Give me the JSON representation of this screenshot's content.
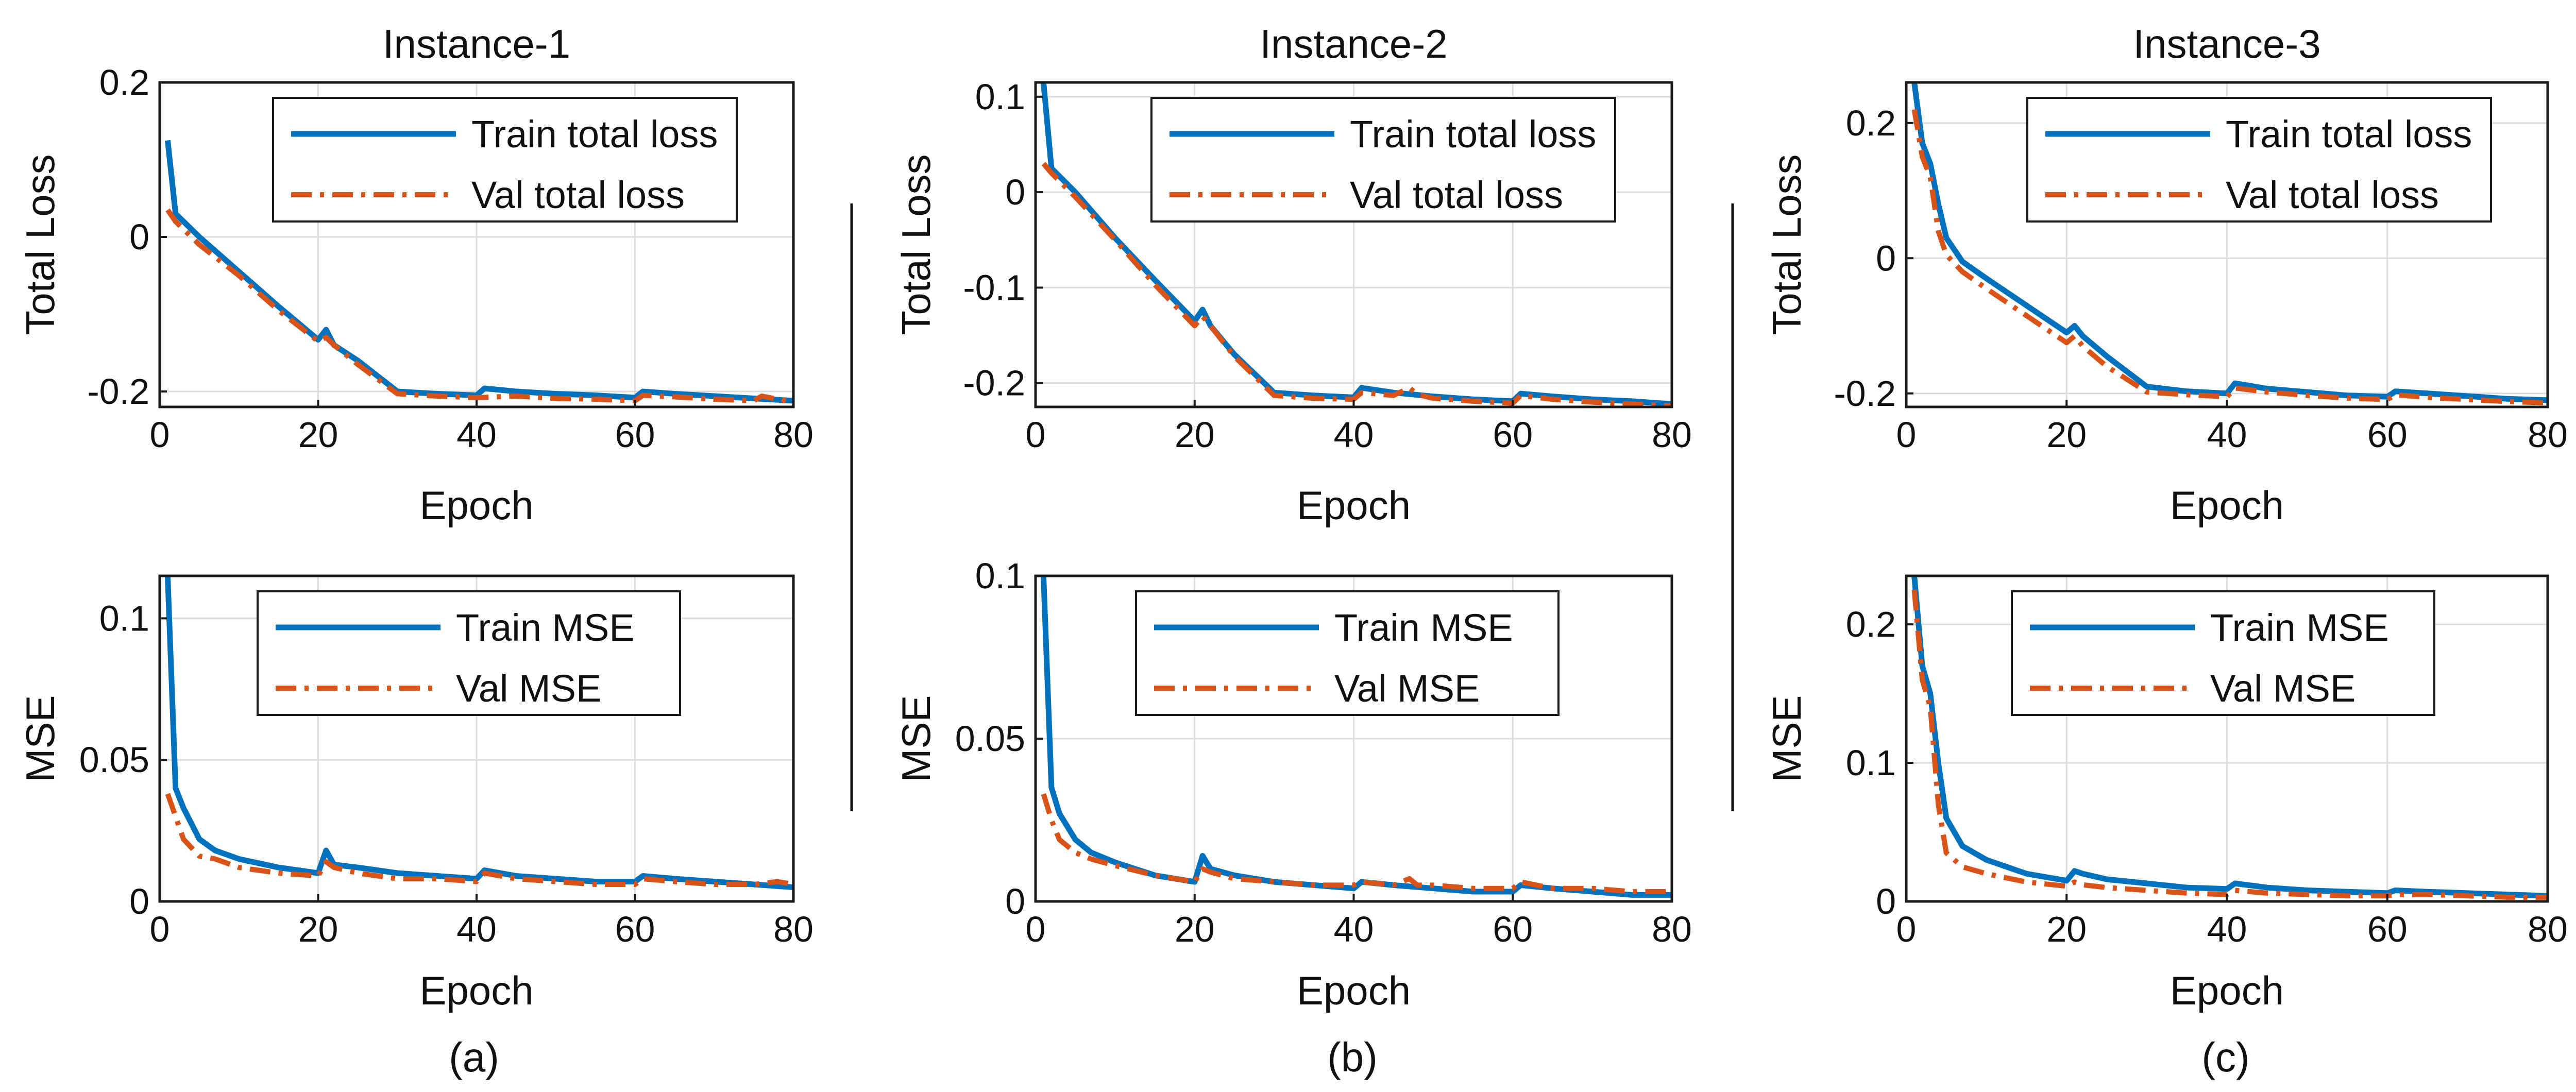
{
  "figure": {
    "captions": [
      "(a)",
      "(b)",
      "(c)"
    ],
    "colors": {
      "train": "#0072BD",
      "val": "#D95319"
    }
  },
  "chart_data": [
    {
      "id": "a-top",
      "type": "line",
      "column": 0,
      "row": 0,
      "title": "Instance-1",
      "xlabel": "Epoch",
      "ylabel": "Total Loss",
      "xlim": [
        0,
        80
      ],
      "ylim": [
        -0.22,
        0.2
      ],
      "xticks": [
        0,
        20,
        40,
        60,
        80
      ],
      "xtick_labels": [
        "0",
        "20",
        "40",
        "60",
        "80"
      ],
      "yticks": [
        -0.2,
        0,
        0.2
      ],
      "ytick_labels": [
        "-0.2",
        "0",
        "0.2"
      ],
      "legend": "top-right",
      "series": [
        {
          "name": "Train total loss",
          "style": "solid",
          "x": [
            1,
            2,
            5,
            10,
            15,
            20,
            21,
            22,
            25,
            30,
            35,
            40,
            41,
            45,
            50,
            55,
            60,
            61,
            65,
            70,
            75,
            80
          ],
          "y": [
            0.125,
            0.03,
            0.0,
            -0.045,
            -0.09,
            -0.133,
            -0.12,
            -0.14,
            -0.16,
            -0.2,
            -0.203,
            -0.205,
            -0.196,
            -0.2,
            -0.203,
            -0.205,
            -0.208,
            -0.2,
            -0.203,
            -0.206,
            -0.209,
            -0.212
          ]
        },
        {
          "name": "Val total loss",
          "style": "dashdot",
          "x": [
            1,
            2,
            5,
            10,
            15,
            20,
            21,
            22,
            25,
            30,
            35,
            40,
            45,
            50,
            55,
            60,
            61,
            65,
            70,
            75,
            76,
            80
          ],
          "y": [
            0.035,
            0.02,
            -0.01,
            -0.05,
            -0.095,
            -0.135,
            -0.13,
            -0.14,
            -0.165,
            -0.203,
            -0.206,
            -0.208,
            -0.206,
            -0.209,
            -0.21,
            -0.212,
            -0.205,
            -0.207,
            -0.21,
            -0.212,
            -0.206,
            -0.214
          ]
        }
      ]
    },
    {
      "id": "a-bottom",
      "type": "line",
      "column": 0,
      "row": 1,
      "title": "",
      "xlabel": "Epoch",
      "ylabel": "MSE",
      "xlim": [
        0,
        80
      ],
      "ylim": [
        0,
        0.115
      ],
      "xticks": [
        0,
        20,
        40,
        60,
        80
      ],
      "xtick_labels": [
        "0",
        "20",
        "40",
        "60",
        "80"
      ],
      "yticks": [
        0,
        0.05,
        0.1
      ],
      "ytick_labels": [
        "0",
        "0.05",
        "0.1"
      ],
      "legend": "top-right",
      "series": [
        {
          "name": "Train MSE",
          "style": "solid",
          "x": [
            1,
            2,
            3,
            5,
            7,
            10,
            15,
            20,
            21,
            22,
            25,
            30,
            35,
            40,
            41,
            45,
            50,
            55,
            60,
            61,
            65,
            70,
            75,
            80
          ],
          "y": [
            0.115,
            0.04,
            0.033,
            0.022,
            0.018,
            0.015,
            0.012,
            0.01,
            0.018,
            0.013,
            0.012,
            0.01,
            0.009,
            0.008,
            0.011,
            0.009,
            0.008,
            0.007,
            0.007,
            0.009,
            0.008,
            0.007,
            0.006,
            0.005
          ]
        },
        {
          "name": "Val MSE",
          "style": "dashdot",
          "x": [
            1,
            2,
            3,
            5,
            7,
            10,
            15,
            20,
            21,
            22,
            25,
            30,
            35,
            40,
            41,
            45,
            50,
            55,
            60,
            61,
            65,
            70,
            75,
            78,
            80
          ],
          "y": [
            0.038,
            0.03,
            0.022,
            0.016,
            0.015,
            0.012,
            0.01,
            0.009,
            0.014,
            0.012,
            0.01,
            0.008,
            0.008,
            0.007,
            0.01,
            0.008,
            0.007,
            0.006,
            0.006,
            0.008,
            0.007,
            0.006,
            0.006,
            0.007,
            0.006
          ]
        }
      ]
    },
    {
      "id": "b-top",
      "type": "line",
      "column": 1,
      "row": 0,
      "title": "Instance-2",
      "xlabel": "Epoch",
      "ylabel": "Total Loss",
      "xlim": [
        0,
        80
      ],
      "ylim": [
        -0.225,
        0.115
      ],
      "xticks": [
        0,
        20,
        40,
        60,
        80
      ],
      "xtick_labels": [
        "0",
        "20",
        "40",
        "60",
        "80"
      ],
      "yticks": [
        -0.2,
        -0.1,
        0,
        0.1
      ],
      "ytick_labels": [
        "-0.2",
        "-0.1",
        "0",
        "0.1"
      ],
      "legend": "top-right",
      "series": [
        {
          "name": "Train total loss",
          "style": "solid",
          "x": [
            1,
            2,
            5,
            10,
            15,
            20,
            21,
            22,
            25,
            30,
            35,
            40,
            41,
            45,
            50,
            55,
            60,
            61,
            65,
            70,
            75,
            80
          ],
          "y": [
            0.115,
            0.025,
            0.0,
            -0.048,
            -0.092,
            -0.135,
            -0.123,
            -0.14,
            -0.17,
            -0.21,
            -0.213,
            -0.215,
            -0.205,
            -0.21,
            -0.214,
            -0.217,
            -0.219,
            -0.211,
            -0.214,
            -0.217,
            -0.219,
            -0.222
          ]
        },
        {
          "name": "Val total loss",
          "style": "dashdot",
          "x": [
            1,
            2,
            5,
            10,
            15,
            20,
            21,
            22,
            25,
            30,
            35,
            40,
            41,
            45,
            47,
            48,
            50,
            55,
            60,
            61,
            65,
            70,
            75,
            80
          ],
          "y": [
            0.03,
            0.02,
            -0.005,
            -0.05,
            -0.097,
            -0.14,
            -0.13,
            -0.14,
            -0.172,
            -0.213,
            -0.216,
            -0.217,
            -0.21,
            -0.213,
            -0.205,
            -0.212,
            -0.216,
            -0.219,
            -0.221,
            -0.213,
            -0.217,
            -0.22,
            -0.222,
            -0.224
          ]
        }
      ]
    },
    {
      "id": "b-bottom",
      "type": "line",
      "column": 1,
      "row": 1,
      "title": "",
      "xlabel": "Epoch",
      "ylabel": "MSE",
      "xlim": [
        0,
        80
      ],
      "ylim": [
        0,
        0.1
      ],
      "xticks": [
        0,
        20,
        40,
        60,
        80
      ],
      "xtick_labels": [
        "0",
        "20",
        "40",
        "60",
        "80"
      ],
      "yticks": [
        0,
        0.05,
        0.1
      ],
      "ytick_labels": [
        "0",
        "0.05",
        "0.1"
      ],
      "legend": "top-right",
      "series": [
        {
          "name": "Train MSE",
          "style": "solid",
          "x": [
            1,
            2,
            3,
            5,
            7,
            10,
            15,
            20,
            21,
            22,
            25,
            30,
            35,
            40,
            41,
            45,
            50,
            55,
            60,
            61,
            65,
            70,
            75,
            80
          ],
          "y": [
            0.1,
            0.035,
            0.027,
            0.019,
            0.015,
            0.012,
            0.008,
            0.006,
            0.014,
            0.01,
            0.008,
            0.006,
            0.005,
            0.004,
            0.006,
            0.005,
            0.004,
            0.003,
            0.003,
            0.005,
            0.004,
            0.003,
            0.002,
            0.002
          ]
        },
        {
          "name": "Val MSE",
          "style": "dashdot",
          "x": [
            1,
            2,
            3,
            5,
            7,
            10,
            15,
            20,
            21,
            22,
            25,
            30,
            35,
            40,
            41,
            45,
            47,
            48,
            50,
            55,
            60,
            61,
            65,
            70,
            75,
            80
          ],
          "y": [
            0.033,
            0.025,
            0.019,
            0.015,
            0.013,
            0.011,
            0.008,
            0.006,
            0.01,
            0.009,
            0.007,
            0.006,
            0.005,
            0.005,
            0.006,
            0.005,
            0.007,
            0.005,
            0.005,
            0.004,
            0.004,
            0.006,
            0.004,
            0.004,
            0.003,
            0.003
          ]
        }
      ]
    },
    {
      "id": "c-top",
      "type": "line",
      "column": 2,
      "row": 0,
      "title": "Instance-3",
      "xlabel": "Epoch",
      "ylabel": "Total Loss",
      "xlim": [
        0,
        80
      ],
      "ylim": [
        -0.22,
        0.26
      ],
      "xticks": [
        0,
        20,
        40,
        60,
        80
      ],
      "xtick_labels": [
        "0",
        "20",
        "40",
        "60",
        "80"
      ],
      "yticks": [
        -0.2,
        0,
        0.2
      ],
      "ytick_labels": [
        "-0.2",
        "0",
        "0.2"
      ],
      "legend": "top-right",
      "series": [
        {
          "name": "Train total loss",
          "style": "solid",
          "x": [
            1,
            2,
            3,
            4,
            5,
            7,
            10,
            15,
            20,
            21,
            22,
            25,
            30,
            35,
            40,
            41,
            45,
            50,
            55,
            60,
            61,
            65,
            70,
            75,
            80
          ],
          "y": [
            0.26,
            0.17,
            0.14,
            0.08,
            0.03,
            -0.005,
            -0.03,
            -0.07,
            -0.11,
            -0.1,
            -0.115,
            -0.145,
            -0.19,
            -0.197,
            -0.2,
            -0.185,
            -0.193,
            -0.198,
            -0.203,
            -0.205,
            -0.197,
            -0.2,
            -0.204,
            -0.208,
            -0.21
          ]
        },
        {
          "name": "Val total loss",
          "style": "dashdot",
          "x": [
            1,
            2,
            3,
            4,
            5,
            7,
            10,
            15,
            20,
            21,
            22,
            25,
            30,
            35,
            40,
            41,
            45,
            50,
            55,
            60,
            61,
            65,
            70,
            75,
            80
          ],
          "y": [
            0.22,
            0.15,
            0.12,
            0.04,
            0.005,
            -0.02,
            -0.045,
            -0.085,
            -0.125,
            -0.115,
            -0.13,
            -0.16,
            -0.198,
            -0.202,
            -0.205,
            -0.192,
            -0.198,
            -0.203,
            -0.207,
            -0.209,
            -0.202,
            -0.206,
            -0.209,
            -0.212,
            -0.214
          ]
        }
      ]
    },
    {
      "id": "c-bottom",
      "type": "line",
      "column": 2,
      "row": 1,
      "title": "",
      "xlabel": "Epoch",
      "ylabel": "MSE",
      "xlim": [
        0,
        80
      ],
      "ylim": [
        0,
        0.235
      ],
      "xticks": [
        0,
        20,
        40,
        60,
        80
      ],
      "xtick_labels": [
        "0",
        "20",
        "40",
        "60",
        "80"
      ],
      "yticks": [
        0,
        0.1,
        0.2
      ],
      "ytick_labels": [
        "0",
        "0.1",
        "0.2"
      ],
      "legend": "top-right",
      "series": [
        {
          "name": "Train MSE",
          "style": "solid",
          "x": [
            1,
            2,
            3,
            4,
            5,
            7,
            10,
            15,
            20,
            21,
            22,
            25,
            30,
            35,
            40,
            41,
            45,
            50,
            55,
            60,
            61,
            65,
            70,
            75,
            80
          ],
          "y": [
            0.235,
            0.17,
            0.15,
            0.1,
            0.06,
            0.04,
            0.03,
            0.02,
            0.015,
            0.022,
            0.02,
            0.016,
            0.013,
            0.01,
            0.009,
            0.013,
            0.01,
            0.008,
            0.007,
            0.006,
            0.008,
            0.007,
            0.006,
            0.005,
            0.004
          ]
        },
        {
          "name": "Val MSE",
          "style": "dashdot",
          "x": [
            1,
            2,
            3,
            4,
            5,
            7,
            10,
            15,
            20,
            21,
            22,
            25,
            30,
            35,
            40,
            41,
            45,
            50,
            55,
            60,
            61,
            65,
            70,
            75,
            80
          ],
          "y": [
            0.225,
            0.16,
            0.14,
            0.07,
            0.035,
            0.025,
            0.02,
            0.014,
            0.011,
            0.014,
            0.012,
            0.01,
            0.008,
            0.006,
            0.005,
            0.008,
            0.006,
            0.005,
            0.004,
            0.004,
            0.005,
            0.005,
            0.004,
            0.003,
            0.003
          ]
        }
      ]
    }
  ]
}
